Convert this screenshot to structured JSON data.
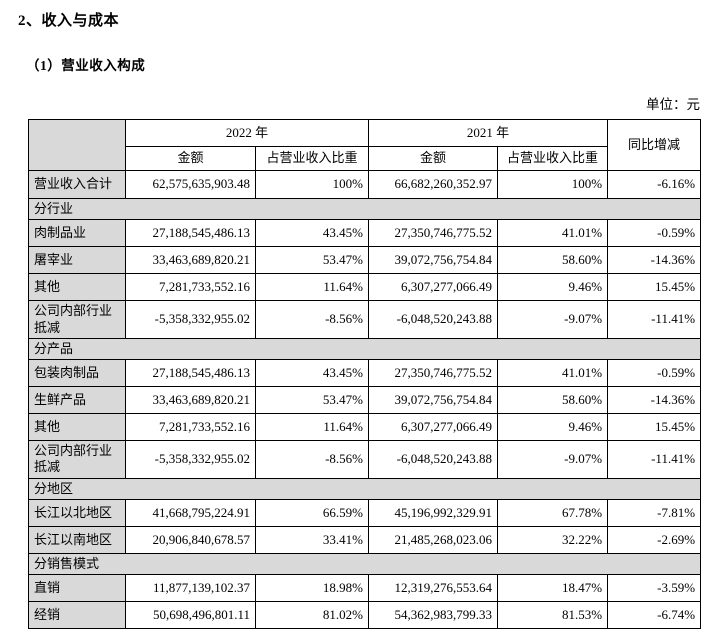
{
  "page": {
    "title": "2、收入与成本",
    "subtitle": "（1）营业收入构成",
    "unit_label": "单位：元"
  },
  "colors": {
    "shaded_cell": "#d9d9d9",
    "border": "#000000",
    "text": "#000000"
  },
  "table": {
    "header": {
      "year_2022": "2022 年",
      "year_2021": "2021 年",
      "amount": "金额",
      "ratio": "占营业收入比重",
      "yoy": "同比增减"
    },
    "total_row": {
      "label": "营业收入合计",
      "amount_2022": "62,575,635,903.48",
      "ratio_2022": "100%",
      "amount_2021": "66,682,260,352.97",
      "ratio_2021": "100%",
      "yoy": "-6.16%"
    },
    "sections": [
      {
        "title": "分行业",
        "rows": [
          {
            "label": "肉制品业",
            "amount_2022": "27,188,545,486.13",
            "ratio_2022": "43.45%",
            "amount_2021": "27,350,746,775.52",
            "ratio_2021": "41.01%",
            "yoy": "-0.59%"
          },
          {
            "label": "屠宰业",
            "amount_2022": "33,463,689,820.21",
            "ratio_2022": "53.47%",
            "amount_2021": "39,072,756,754.84",
            "ratio_2021": "58.60%",
            "yoy": "-14.36%"
          },
          {
            "label": "其他",
            "amount_2022": "7,281,733,552.16",
            "ratio_2022": "11.64%",
            "amount_2021": "6,307,277,066.49",
            "ratio_2021": "9.46%",
            "yoy": "15.45%"
          },
          {
            "label": "公司内部行业抵减",
            "amount_2022": "-5,358,332,955.02",
            "ratio_2022": "-8.56%",
            "amount_2021": "-6,048,520,243.88",
            "ratio_2021": "-9.07%",
            "yoy": "-11.41%"
          }
        ]
      },
      {
        "title": "分产品",
        "rows": [
          {
            "label": "包装肉制品",
            "amount_2022": "27,188,545,486.13",
            "ratio_2022": "43.45%",
            "amount_2021": "27,350,746,775.52",
            "ratio_2021": "41.01%",
            "yoy": "-0.59%"
          },
          {
            "label": "生鲜产品",
            "amount_2022": "33,463,689,820.21",
            "ratio_2022": "53.47%",
            "amount_2021": "39,072,756,754.84",
            "ratio_2021": "58.60%",
            "yoy": "-14.36%"
          },
          {
            "label": "其他",
            "amount_2022": "7,281,733,552.16",
            "ratio_2022": "11.64%",
            "amount_2021": "6,307,277,066.49",
            "ratio_2021": "9.46%",
            "yoy": "15.45%"
          },
          {
            "label": "公司内部行业抵减",
            "amount_2022": "-5,358,332,955.02",
            "ratio_2022": "-8.56%",
            "amount_2021": "-6,048,520,243.88",
            "ratio_2021": "-9.07%",
            "yoy": "-11.41%"
          }
        ]
      },
      {
        "title": "分地区",
        "rows": [
          {
            "label": "长江以北地区",
            "amount_2022": "41,668,795,224.91",
            "ratio_2022": "66.59%",
            "amount_2021": "45,196,992,329.91",
            "ratio_2021": "67.78%",
            "yoy": "-7.81%"
          },
          {
            "label": "长江以南地区",
            "amount_2022": "20,906,840,678.57",
            "ratio_2022": "33.41%",
            "amount_2021": "21,485,268,023.06",
            "ratio_2021": "32.22%",
            "yoy": "-2.69%"
          }
        ]
      },
      {
        "title": "分销售模式",
        "rows": [
          {
            "label": "直销",
            "amount_2022": "11,877,139,102.37",
            "ratio_2022": "18.98%",
            "amount_2021": "12,319,276,553.64",
            "ratio_2021": "18.47%",
            "yoy": "-3.59%"
          },
          {
            "label": "经销",
            "amount_2022": "50,698,496,801.11",
            "ratio_2022": "81.02%",
            "amount_2021": "54,362,983,799.33",
            "ratio_2021": "81.53%",
            "yoy": "-6.74%"
          }
        ]
      }
    ]
  }
}
